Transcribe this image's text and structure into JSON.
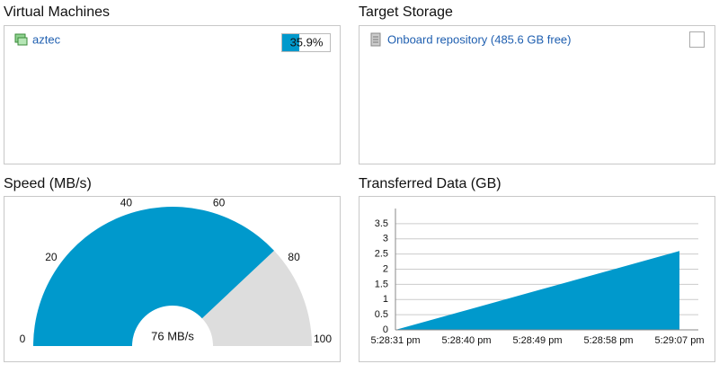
{
  "virtual_machines": {
    "title": "Virtual Machines",
    "items": [
      {
        "name": "aztec",
        "progress": 35.9,
        "progress_label": "35.9%",
        "color": "#0099cc"
      }
    ]
  },
  "target_storage": {
    "title": "Target Storage",
    "items": [
      {
        "name": "Onboard repository (485.6 GB free)"
      }
    ]
  },
  "chart_data": [
    {
      "type": "gauge",
      "title": "Speed (MB/s)",
      "value": 76,
      "value_label": "76 MB/s",
      "ylim": [
        0,
        100
      ],
      "yticks": [
        0,
        20,
        40,
        60,
        80,
        100
      ],
      "color": "#0099cc",
      "track_color": "#dddddd"
    },
    {
      "type": "area",
      "title": "Transferred Data (GB)",
      "x": [
        "5:28:31 pm",
        "5:28:40 pm",
        "5:28:49 pm",
        "5:28:58 pm",
        "5:29:07 pm"
      ],
      "values": [
        0,
        0.65,
        1.3,
        1.95,
        2.6
      ],
      "color": "#0099cc",
      "ylim": [
        0,
        4
      ],
      "yticks": [
        0,
        0.5,
        1,
        1.5,
        2,
        2.5,
        3,
        3.5
      ],
      "grid": true
    }
  ]
}
